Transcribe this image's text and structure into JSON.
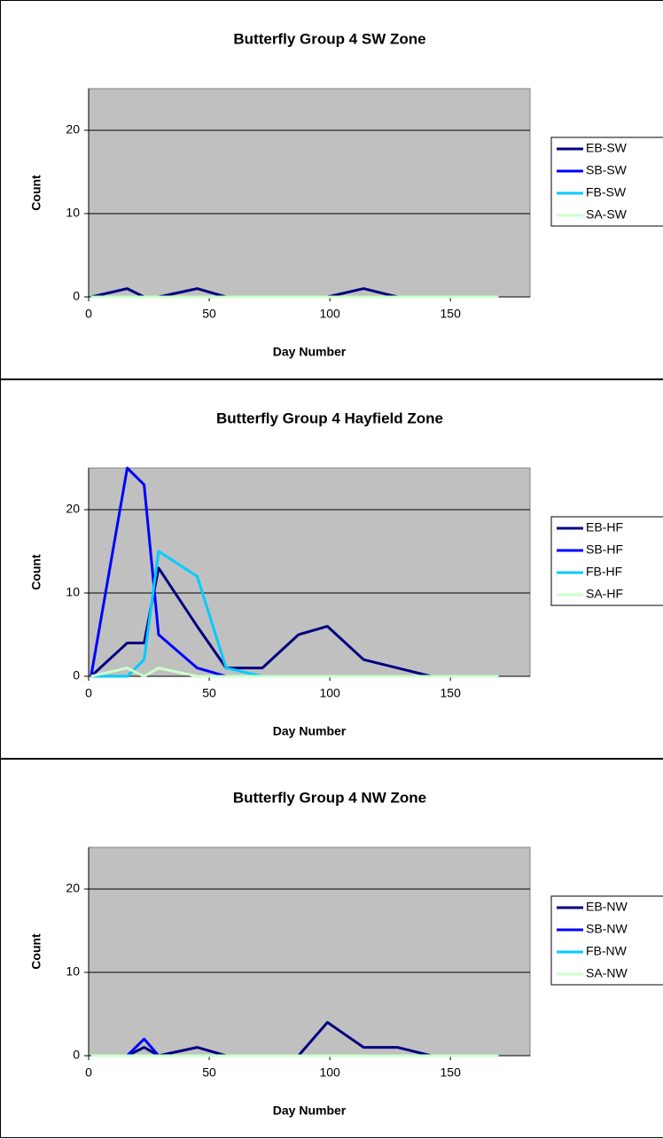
{
  "chart_data": [
    {
      "type": "line",
      "title": "Butterfly Group 4 SW Zone",
      "xlabel": "Day Number",
      "ylabel": "Count",
      "x": [
        1,
        16,
        23,
        29,
        45,
        57,
        72,
        87,
        99,
        114,
        128,
        142,
        156,
        170
      ],
      "series": [
        {
          "name": "EB-SW",
          "color": "#000080",
          "values": [
            0,
            1,
            0,
            0,
            1,
            0,
            0,
            0,
            0,
            1,
            0,
            0,
            0,
            0
          ]
        },
        {
          "name": "SB-SW",
          "color": "#0000ff",
          "values": [
            0,
            0,
            0,
            0,
            0,
            0,
            0,
            0,
            0,
            0,
            0,
            0,
            0,
            0
          ]
        },
        {
          "name": "FB-SW",
          "color": "#00ccff",
          "values": [
            0,
            0,
            0,
            0,
            0,
            0,
            0,
            0,
            0,
            0,
            0,
            0,
            0,
            0
          ]
        },
        {
          "name": "SA-SW",
          "color": "#ccffcc",
          "values": [
            0,
            0,
            0,
            0,
            0,
            0,
            0,
            0,
            0,
            0,
            0,
            0,
            0,
            0
          ]
        }
      ],
      "xlim": [
        0,
        183
      ],
      "xticks": [
        0,
        50,
        100,
        150
      ],
      "ylim": [
        0,
        25
      ],
      "yticks": [
        0,
        10,
        20
      ],
      "grid": true,
      "legend": "right"
    },
    {
      "type": "line",
      "title": "Butterfly Group 4 Hayfield Zone",
      "xlabel": "Day Number",
      "ylabel": "Count",
      "x": [
        1,
        16,
        23,
        29,
        45,
        57,
        72,
        87,
        99,
        114,
        128,
        142,
        156,
        170
      ],
      "series": [
        {
          "name": "EB-HF",
          "color": "#000080",
          "values": [
            0,
            4,
            4,
            13,
            6,
            1,
            1,
            5,
            6,
            2,
            1,
            0,
            0,
            0
          ]
        },
        {
          "name": "SB-HF",
          "color": "#0000ff",
          "values": [
            0,
            25,
            23,
            5,
            1,
            0,
            0,
            0,
            0,
            0,
            0,
            0,
            0,
            0
          ]
        },
        {
          "name": "FB-HF",
          "color": "#00ccff",
          "values": [
            0,
            0,
            2,
            15,
            12,
            1,
            0,
            0,
            0,
            0,
            0,
            0,
            0,
            0
          ]
        },
        {
          "name": "SA-HF",
          "color": "#ccffcc",
          "values": [
            0,
            1,
            0,
            1,
            0,
            0,
            0,
            0,
            0,
            0,
            0,
            0,
            0,
            0
          ]
        }
      ],
      "xlim": [
        0,
        183
      ],
      "xticks": [
        0,
        50,
        100,
        150
      ],
      "ylim": [
        0,
        25
      ],
      "yticks": [
        0,
        10,
        20
      ],
      "grid": true,
      "legend": "right"
    },
    {
      "type": "line",
      "title": "Butterfly Group 4 NW Zone",
      "xlabel": "Day Number",
      "ylabel": "Count",
      "x": [
        1,
        16,
        23,
        29,
        45,
        57,
        72,
        87,
        99,
        114,
        128,
        142,
        156,
        170
      ],
      "series": [
        {
          "name": "EB-NW",
          "color": "#000080",
          "values": [
            0,
            0,
            1,
            0,
            1,
            0,
            0,
            0,
            4,
            1,
            1,
            0,
            0,
            0
          ]
        },
        {
          "name": "SB-NW",
          "color": "#0000ff",
          "values": [
            0,
            0,
            2,
            0,
            0,
            0,
            0,
            0,
            0,
            0,
            0,
            0,
            0,
            0
          ]
        },
        {
          "name": "FB-NW",
          "color": "#00ccff",
          "values": [
            0,
            0,
            0,
            0,
            0,
            0,
            0,
            0,
            0,
            0,
            0,
            0,
            0,
            0
          ]
        },
        {
          "name": "SA-NW",
          "color": "#ccffcc",
          "values": [
            0,
            0,
            0,
            0,
            0,
            0,
            0,
            0,
            0,
            0,
            0,
            0,
            0,
            0
          ]
        }
      ],
      "xlim": [
        0,
        183
      ],
      "xticks": [
        0,
        50,
        100,
        150
      ],
      "ylim": [
        0,
        25
      ],
      "yticks": [
        0,
        10,
        20
      ],
      "grid": true,
      "legend": "right"
    }
  ]
}
